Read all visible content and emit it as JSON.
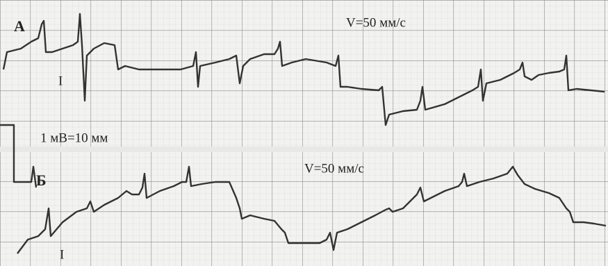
{
  "strips": [
    {
      "label": "А",
      "speed": "V=50 мм/с",
      "lead": "I"
    },
    {
      "label": "Б",
      "speed": "V=50 мм/с",
      "lead": "I"
    }
  ],
  "calibration": "1 мВ=10 мм"
}
